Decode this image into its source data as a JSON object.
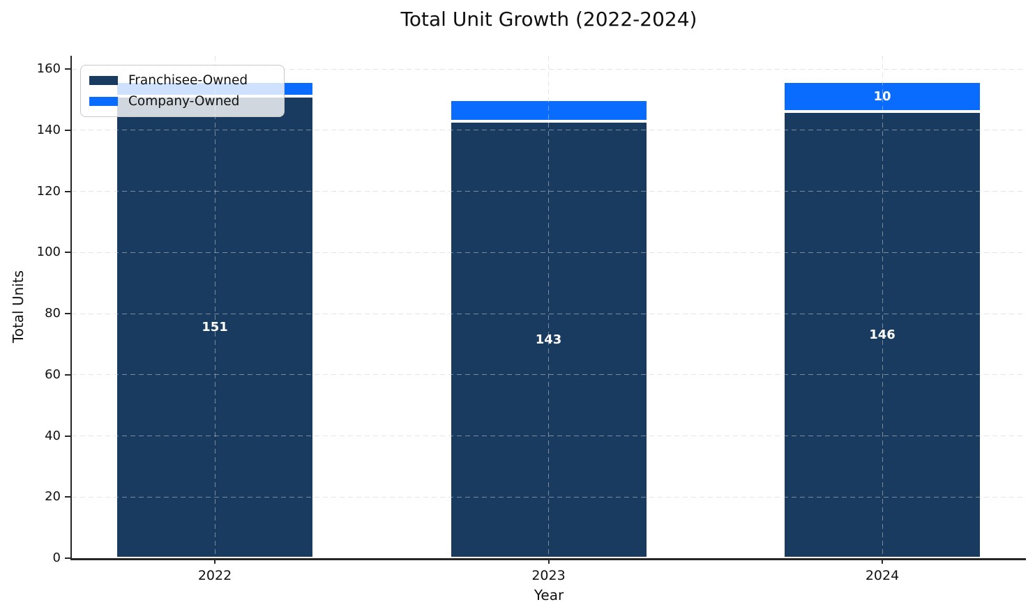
{
  "chart_data": {
    "type": "bar",
    "stacked": true,
    "title": "Total Unit Growth (2022-2024)",
    "xlabel": "Year",
    "ylabel": "Total Units",
    "categories": [
      "2022",
      "2023",
      "2024"
    ],
    "series": [
      {
        "name": "Franchisee-Owned",
        "color": "#1A3B60",
        "values": [
          151,
          143,
          146
        ],
        "labels": [
          "151",
          "143",
          "146"
        ]
      },
      {
        "name": "Company-Owned",
        "color": "#0A6CFF",
        "values": [
          5,
          7,
          10
        ],
        "labels": [
          "",
          "",
          "10"
        ]
      }
    ],
    "totals": [
      156,
      150,
      156
    ],
    "ylim": [
      0,
      160
    ],
    "yticks": [
      0,
      20,
      40,
      60,
      80,
      100,
      120,
      140,
      160
    ],
    "grid": true,
    "grid_style": "dashed",
    "legend_position": "upper left",
    "bar_edge_color": "#ffffff"
  }
}
